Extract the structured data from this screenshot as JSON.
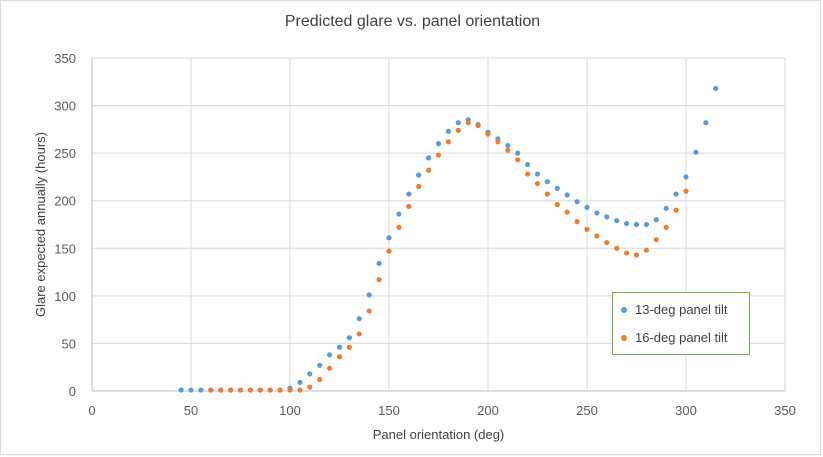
{
  "chart_data": {
    "type": "scatter",
    "title": "Predicted glare vs. panel orientation",
    "xlabel": "Panel orientation (deg)",
    "ylabel": "Glare expected annually (hours)",
    "xlim": [
      0,
      350
    ],
    "ylim": [
      0,
      350
    ],
    "xticks": [
      0,
      50,
      100,
      150,
      200,
      250,
      300,
      350
    ],
    "yticks": [
      0,
      50,
      100,
      150,
      200,
      250,
      300,
      350
    ],
    "grid": true,
    "legend_position": "bottom-right",
    "series": [
      {
        "name": "13-deg panel tilt",
        "color": "#5b9bd5",
        "x": [
          45,
          50,
          55,
          60,
          65,
          70,
          75,
          80,
          85,
          90,
          95,
          100,
          105,
          110,
          115,
          120,
          125,
          130,
          135,
          140,
          145,
          150,
          155,
          160,
          165,
          170,
          175,
          180,
          185,
          190,
          195,
          200,
          205,
          210,
          215,
          220,
          225,
          230,
          235,
          240,
          245,
          250,
          255,
          260,
          265,
          270,
          275,
          280,
          285,
          290,
          295,
          300,
          305,
          310,
          315
        ],
        "y": [
          1,
          1,
          1,
          1,
          1,
          1,
          1,
          1,
          1,
          1,
          1,
          3,
          9,
          18,
          27,
          38,
          46,
          56,
          76,
          101,
          134,
          161,
          186,
          207,
          227,
          245,
          260,
          273,
          282,
          285,
          280,
          272,
          265,
          258,
          250,
          238,
          228,
          220,
          213,
          206,
          199,
          193,
          187,
          183,
          179,
          176,
          175,
          175,
          180,
          192,
          207,
          225,
          251,
          282,
          318
        ]
      },
      {
        "name": "16-deg panel tilt",
        "color": "#ed7d31",
        "x": [
          60,
          65,
          70,
          75,
          80,
          85,
          90,
          95,
          100,
          105,
          110,
          115,
          120,
          125,
          130,
          135,
          140,
          145,
          150,
          155,
          160,
          165,
          170,
          175,
          180,
          185,
          190,
          195,
          200,
          205,
          210,
          215,
          220,
          225,
          230,
          235,
          240,
          245,
          250,
          255,
          260,
          265,
          270,
          275,
          280,
          285,
          290,
          295,
          300
        ],
        "y": [
          1,
          1,
          1,
          1,
          1,
          1,
          1,
          1,
          1,
          1,
          4,
          12,
          24,
          36,
          46,
          60,
          84,
          117,
          147,
          172,
          194,
          215,
          232,
          248,
          262,
          274,
          282,
          279,
          270,
          262,
          253,
          243,
          228,
          218,
          207,
          196,
          188,
          178,
          170,
          163,
          156,
          150,
          145,
          143,
          148,
          159,
          172,
          190,
          210
        ]
      }
    ]
  }
}
